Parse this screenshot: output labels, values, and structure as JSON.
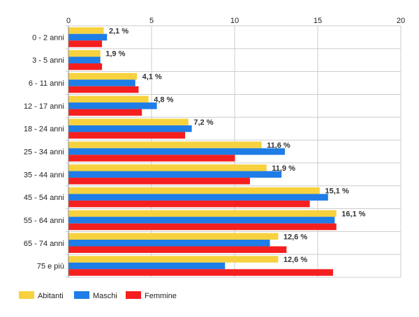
{
  "chart_data": {
    "type": "bar",
    "orientation": "horizontal",
    "categories": [
      "0 - 2 anni",
      "3 - 5 anni",
      "6 - 11 anni",
      "12 - 17 anni",
      "18 - 24 anni",
      "25 - 34 anni",
      "35 - 44 anni",
      "45 - 54 anni",
      "55 - 64 anni",
      "65 - 74 anni",
      "75 e più"
    ],
    "series": [
      {
        "name": "Abitanti",
        "color": "#f7d23e",
        "values": [
          2.1,
          1.9,
          4.1,
          4.8,
          7.2,
          11.6,
          11.9,
          15.1,
          16.1,
          12.6,
          12.6
        ]
      },
      {
        "name": "Maschi",
        "color": "#1e7de6",
        "values": [
          2.3,
          1.9,
          4.0,
          5.3,
          7.4,
          13.0,
          12.8,
          15.6,
          16.0,
          12.1,
          9.4
        ]
      },
      {
        "name": "Femmine",
        "color": "#f51f1f",
        "values": [
          2.0,
          2.0,
          4.2,
          4.4,
          7.0,
          10.0,
          10.9,
          14.5,
          16.1,
          13.1,
          15.9
        ]
      }
    ],
    "data_labels": [
      "2,1 %",
      "1,9 %",
      "4,1 %",
      "4,8 %",
      "7,2 %",
      "11,6 %",
      "11,9 %",
      "15,1 %",
      "16,1 %",
      "12,6 %",
      "12,6 %"
    ],
    "xlim": [
      0,
      20
    ],
    "xticks": [
      0,
      5,
      10,
      15,
      20
    ],
    "tick_labels": [
      "0",
      "5",
      "10",
      "15",
      "20"
    ],
    "grid": true,
    "legend_position": "bottom-left"
  }
}
